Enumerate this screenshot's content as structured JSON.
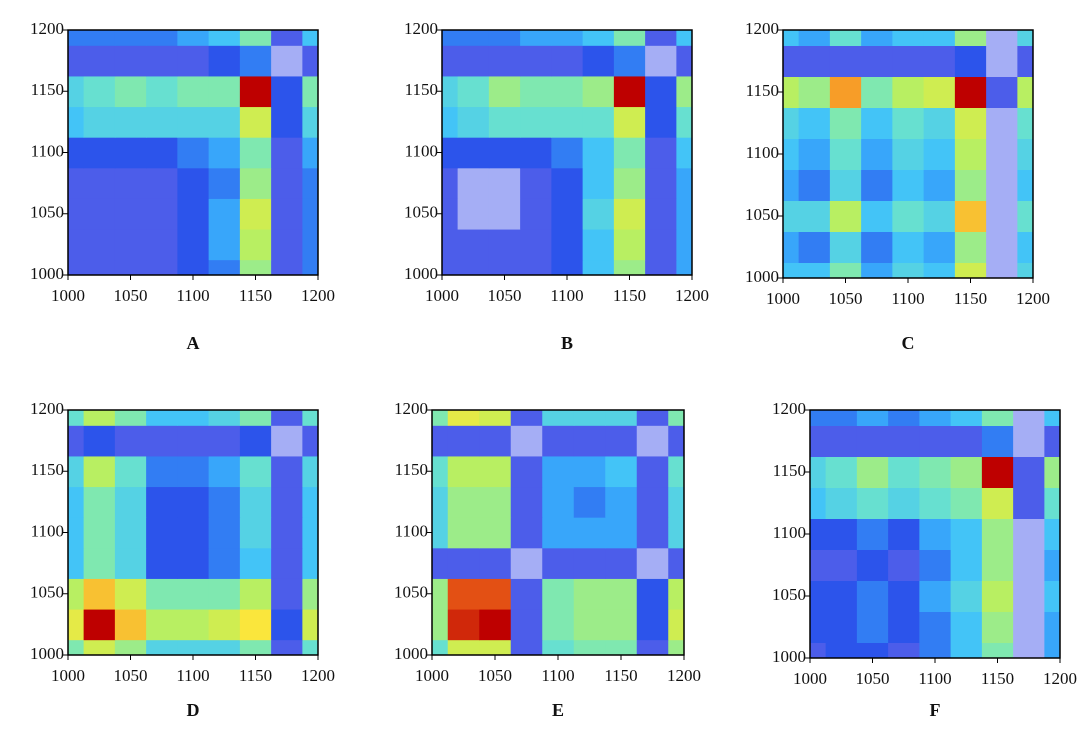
{
  "chart_data": [
    {
      "type": "heatmap",
      "title": "A",
      "x": [
        1000,
        1025,
        1050,
        1075,
        1100,
        1125,
        1150,
        1175,
        1200
      ],
      "y": [
        1000,
        1025,
        1050,
        1075,
        1100,
        1125,
        1150,
        1175,
        1200
      ],
      "z": [
        [
          0.1,
          0.1,
          0.1,
          0.1,
          0.15,
          0.2,
          0.5,
          0.1,
          0.2
        ],
        [
          0.1,
          0.1,
          0.1,
          0.1,
          0.15,
          0.25,
          0.55,
          0.1,
          0.2
        ],
        [
          0.1,
          0.1,
          0.1,
          0.1,
          0.15,
          0.25,
          0.6,
          0.1,
          0.2
        ],
        [
          0.1,
          0.1,
          0.1,
          0.1,
          0.15,
          0.2,
          0.5,
          0.1,
          0.2
        ],
        [
          0.15,
          0.15,
          0.15,
          0.15,
          0.2,
          0.25,
          0.45,
          0.1,
          0.25
        ],
        [
          0.3,
          0.35,
          0.35,
          0.35,
          0.35,
          0.35,
          0.6,
          0.15,
          0.35
        ],
        [
          0.35,
          0.4,
          0.45,
          0.4,
          0.45,
          0.45,
          1.0,
          0.15,
          0.45
        ],
        [
          0.1,
          0.1,
          0.1,
          0.1,
          0.1,
          0.15,
          0.2,
          0.05,
          0.1
        ],
        [
          0.2,
          0.2,
          0.2,
          0.2,
          0.25,
          0.3,
          0.45,
          0.1,
          0.3
        ]
      ],
      "xlim": [
        1000,
        1200
      ],
      "ylim": [
        1000,
        1200
      ],
      "xticks": [
        1000,
        1050,
        1100,
        1150,
        1200
      ],
      "yticks": [
        1000,
        1050,
        1100,
        1150,
        1200
      ]
    },
    {
      "type": "heatmap",
      "title": "B",
      "x": [
        1000,
        1025,
        1050,
        1075,
        1100,
        1125,
        1150,
        1175,
        1200
      ],
      "y": [
        1000,
        1025,
        1050,
        1075,
        1100,
        1125,
        1150,
        1175,
        1200
      ],
      "z": [
        [
          0.1,
          0.1,
          0.1,
          0.1,
          0.15,
          0.3,
          0.5,
          0.1,
          0.25
        ],
        [
          0.1,
          0.1,
          0.1,
          0.1,
          0.15,
          0.3,
          0.55,
          0.1,
          0.25
        ],
        [
          0.1,
          0.05,
          0.05,
          0.1,
          0.15,
          0.35,
          0.6,
          0.1,
          0.25
        ],
        [
          0.1,
          0.05,
          0.05,
          0.1,
          0.15,
          0.3,
          0.5,
          0.1,
          0.25
        ],
        [
          0.15,
          0.15,
          0.15,
          0.15,
          0.2,
          0.3,
          0.45,
          0.1,
          0.3
        ],
        [
          0.3,
          0.35,
          0.4,
          0.4,
          0.4,
          0.4,
          0.6,
          0.15,
          0.4
        ],
        [
          0.35,
          0.4,
          0.5,
          0.45,
          0.45,
          0.5,
          1.0,
          0.15,
          0.5
        ],
        [
          0.1,
          0.1,
          0.1,
          0.1,
          0.1,
          0.15,
          0.2,
          0.05,
          0.1
        ],
        [
          0.2,
          0.2,
          0.2,
          0.25,
          0.25,
          0.3,
          0.45,
          0.1,
          0.3
        ]
      ],
      "xlim": [
        1000,
        1200
      ],
      "ylim": [
        1000,
        1200
      ],
      "xticks": [
        1000,
        1050,
        1100,
        1150,
        1200
      ],
      "yticks": [
        1000,
        1050,
        1100,
        1150,
        1200
      ]
    },
    {
      "type": "heatmap",
      "title": "C",
      "x": [
        1000,
        1025,
        1050,
        1075,
        1100,
        1125,
        1150,
        1175,
        1200
      ],
      "y": [
        1000,
        1025,
        1050,
        1075,
        1100,
        1125,
        1150,
        1175,
        1200
      ],
      "z": [
        [
          0.3,
          0.3,
          0.45,
          0.25,
          0.35,
          0.3,
          0.6,
          0.05,
          0.35
        ],
        [
          0.25,
          0.2,
          0.35,
          0.2,
          0.3,
          0.25,
          0.5,
          0.05,
          0.3
        ],
        [
          0.35,
          0.35,
          0.55,
          0.3,
          0.4,
          0.35,
          0.75,
          0.05,
          0.4
        ],
        [
          0.25,
          0.2,
          0.35,
          0.2,
          0.3,
          0.25,
          0.5,
          0.05,
          0.3
        ],
        [
          0.3,
          0.25,
          0.4,
          0.25,
          0.35,
          0.3,
          0.55,
          0.05,
          0.35
        ],
        [
          0.35,
          0.3,
          0.45,
          0.3,
          0.4,
          0.35,
          0.6,
          0.05,
          0.4
        ],
        [
          0.55,
          0.5,
          0.8,
          0.45,
          0.55,
          0.6,
          1.0,
          0.1,
          0.55
        ],
        [
          0.1,
          0.1,
          0.1,
          0.1,
          0.1,
          0.1,
          0.15,
          0.05,
          0.1
        ],
        [
          0.3,
          0.25,
          0.4,
          0.25,
          0.3,
          0.3,
          0.5,
          0.05,
          0.35
        ]
      ],
      "xlim": [
        1000,
        1200
      ],
      "ylim": [
        1000,
        1200
      ],
      "xticks": [
        1000,
        1050,
        1100,
        1150,
        1200
      ],
      "yticks": [
        1000,
        1050,
        1100,
        1150,
        1200
      ]
    },
    {
      "type": "heatmap",
      "title": "D",
      "x": [
        1000,
        1025,
        1050,
        1075,
        1100,
        1125,
        1150,
        1175,
        1200
      ],
      "y": [
        1000,
        1025,
        1050,
        1075,
        1100,
        1125,
        1150,
        1175,
        1200
      ],
      "z": [
        [
          0.45,
          0.6,
          0.5,
          0.35,
          0.35,
          0.35,
          0.45,
          0.1,
          0.4
        ],
        [
          0.65,
          1.0,
          0.75,
          0.55,
          0.55,
          0.6,
          0.7,
          0.15,
          0.6
        ],
        [
          0.55,
          0.75,
          0.6,
          0.45,
          0.45,
          0.45,
          0.55,
          0.1,
          0.5
        ],
        [
          0.3,
          0.45,
          0.35,
          0.15,
          0.15,
          0.2,
          0.3,
          0.1,
          0.3
        ],
        [
          0.3,
          0.45,
          0.35,
          0.15,
          0.15,
          0.2,
          0.35,
          0.1,
          0.3
        ],
        [
          0.3,
          0.45,
          0.35,
          0.15,
          0.15,
          0.2,
          0.35,
          0.1,
          0.3
        ],
        [
          0.35,
          0.55,
          0.4,
          0.2,
          0.2,
          0.25,
          0.4,
          0.1,
          0.35
        ],
        [
          0.1,
          0.15,
          0.1,
          0.1,
          0.1,
          0.1,
          0.15,
          0.05,
          0.1
        ],
        [
          0.4,
          0.55,
          0.45,
          0.3,
          0.3,
          0.35,
          0.45,
          0.1,
          0.4
        ]
      ],
      "xlim": [
        1000,
        1200
      ],
      "ylim": [
        1000,
        1200
      ],
      "xticks": [
        1000,
        1050,
        1100,
        1150,
        1200
      ],
      "yticks": [
        1000,
        1050,
        1100,
        1150,
        1200
      ]
    },
    {
      "type": "heatmap",
      "title": "E",
      "x": [
        1000,
        1025,
        1050,
        1075,
        1100,
        1125,
        1150,
        1175,
        1200
      ],
      "y": [
        1000,
        1025,
        1050,
        1075,
        1100,
        1125,
        1150,
        1175,
        1200
      ],
      "z": [
        [
          0.4,
          0.6,
          0.6,
          0.1,
          0.4,
          0.45,
          0.45,
          0.1,
          0.5
        ],
        [
          0.5,
          0.95,
          1.0,
          0.1,
          0.45,
          0.5,
          0.5,
          0.15,
          0.6
        ],
        [
          0.5,
          0.9,
          0.9,
          0.1,
          0.45,
          0.5,
          0.5,
          0.15,
          0.55
        ],
        [
          0.1,
          0.1,
          0.1,
          0.05,
          0.1,
          0.1,
          0.1,
          0.05,
          0.1
        ],
        [
          0.35,
          0.5,
          0.5,
          0.1,
          0.25,
          0.25,
          0.25,
          0.1,
          0.35
        ],
        [
          0.35,
          0.5,
          0.5,
          0.1,
          0.25,
          0.2,
          0.25,
          0.1,
          0.35
        ],
        [
          0.4,
          0.55,
          0.55,
          0.1,
          0.25,
          0.25,
          0.3,
          0.1,
          0.4
        ],
        [
          0.1,
          0.1,
          0.1,
          0.05,
          0.1,
          0.1,
          0.1,
          0.05,
          0.1
        ],
        [
          0.45,
          0.65,
          0.6,
          0.1,
          0.35,
          0.35,
          0.35,
          0.1,
          0.45
        ]
      ],
      "xlim": [
        1000,
        1200
      ],
      "ylim": [
        1000,
        1200
      ],
      "xticks": [
        1000,
        1050,
        1100,
        1150,
        1200
      ],
      "yticks": [
        1000,
        1050,
        1100,
        1150,
        1200
      ]
    },
    {
      "type": "heatmap",
      "title": "F",
      "x": [
        1000,
        1025,
        1050,
        1075,
        1100,
        1125,
        1150,
        1175,
        1200
      ],
      "y": [
        1000,
        1025,
        1050,
        1075,
        1100,
        1125,
        1150,
        1175,
        1200
      ],
      "z": [
        [
          0.1,
          0.15,
          0.15,
          0.1,
          0.2,
          0.3,
          0.45,
          0.05,
          0.25
        ],
        [
          0.15,
          0.15,
          0.2,
          0.15,
          0.2,
          0.3,
          0.5,
          0.05,
          0.25
        ],
        [
          0.15,
          0.15,
          0.2,
          0.15,
          0.25,
          0.35,
          0.55,
          0.05,
          0.3
        ],
        [
          0.1,
          0.1,
          0.15,
          0.1,
          0.2,
          0.3,
          0.5,
          0.05,
          0.25
        ],
        [
          0.15,
          0.15,
          0.2,
          0.15,
          0.25,
          0.3,
          0.5,
          0.05,
          0.3
        ],
        [
          0.3,
          0.35,
          0.4,
          0.35,
          0.4,
          0.45,
          0.6,
          0.1,
          0.4
        ],
        [
          0.35,
          0.4,
          0.5,
          0.4,
          0.45,
          0.5,
          1.0,
          0.1,
          0.5
        ],
        [
          0.1,
          0.1,
          0.1,
          0.1,
          0.1,
          0.1,
          0.2,
          0.05,
          0.1
        ],
        [
          0.2,
          0.2,
          0.25,
          0.2,
          0.25,
          0.3,
          0.45,
          0.05,
          0.3
        ]
      ],
      "xlim": [
        1000,
        1200
      ],
      "ylim": [
        1000,
        1200
      ],
      "xticks": [
        1000,
        1050,
        1100,
        1150,
        1200
      ],
      "yticks": [
        1000,
        1050,
        1100,
        1150,
        1200
      ]
    }
  ]
}
